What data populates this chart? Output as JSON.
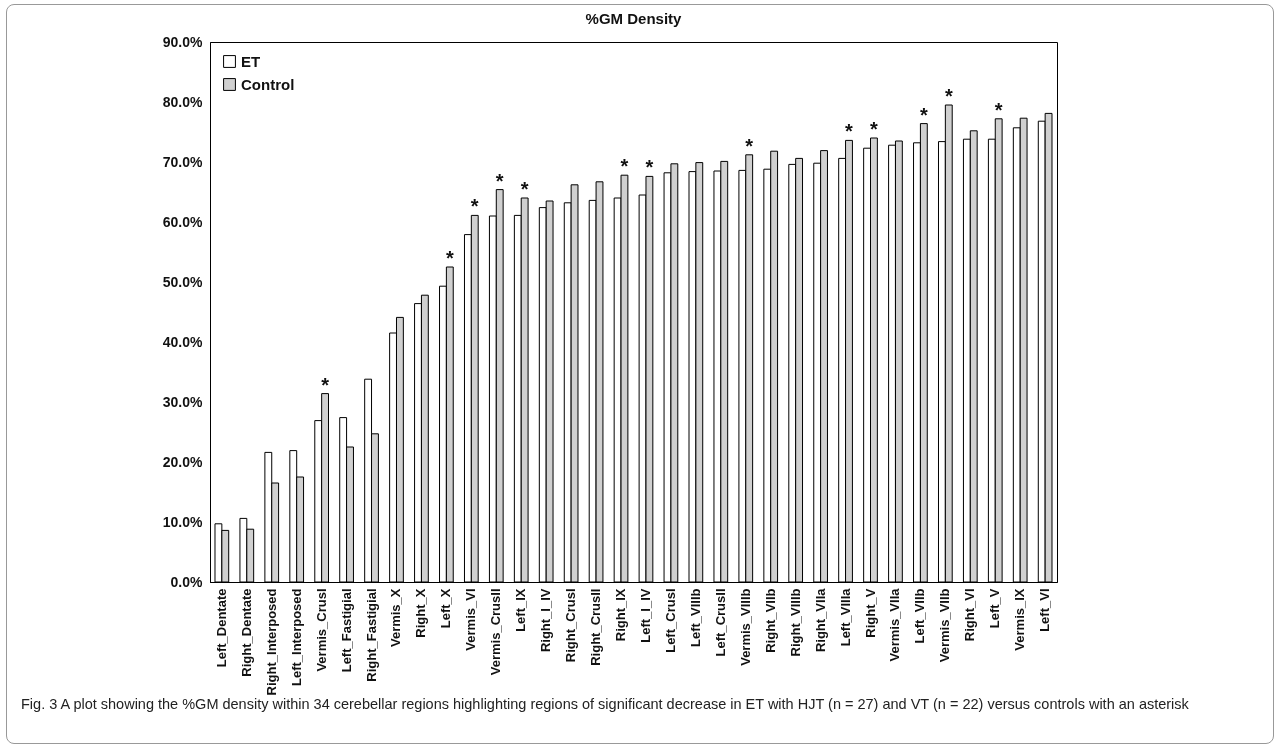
{
  "chart_data": {
    "type": "bar",
    "title": "%GM Density",
    "categories": [
      "Left_Dentate",
      "Right_Dentate",
      "Right_Interposed",
      "Left_Interposed",
      "Vermis_CrusI",
      "Left_Fastigial",
      "Right_Fastigial",
      "Vermis_X",
      "Right_X",
      "Left_X",
      "Vermis_VI",
      "Vermis_CrusII",
      "Left_IX",
      "Right_I_IV",
      "Right_CrusI",
      "Right_CrusII",
      "Right_IX",
      "Left_I_IV",
      "Left_CrusI",
      "Left_VIIIb",
      "Left_CrusII",
      "Vermis_VIIIb",
      "Right_VIIb",
      "Right_VIIIb",
      "Right_VIIa",
      "Left_VIIIa",
      "Right_V",
      "Vermis_VIIa",
      "Left_VIIb",
      "Vermis_VIIb",
      "Right_VI",
      "Left_V",
      "Vermis_IX",
      "Left_VI"
    ],
    "series": [
      {
        "name": "ET",
        "color": "#ffffff",
        "values": [
          9.7,
          10.6,
          21.6,
          21.9,
          26.9,
          27.4,
          33.8,
          41.5,
          46.4,
          49.3,
          57.9,
          61.0,
          61.1,
          62.4,
          63.2,
          63.6,
          64.0,
          64.5,
          68.2,
          68.4,
          68.5,
          68.6,
          68.8,
          69.6,
          69.8,
          70.6,
          72.3,
          72.8,
          73.2,
          73.4,
          73.8,
          73.8,
          75.7,
          76.8
        ]
      },
      {
        "name": "Control",
        "color": "#d0d0d0",
        "values": [
          8.6,
          8.8,
          16.5,
          17.5,
          31.4,
          22.5,
          24.7,
          44.1,
          47.8,
          52.5,
          61.1,
          65.4,
          64.0,
          63.5,
          66.2,
          66.7,
          67.8,
          67.6,
          69.7,
          69.9,
          70.1,
          71.2,
          71.8,
          70.6,
          71.9,
          73.6,
          74.0,
          73.5,
          76.4,
          79.5,
          75.2,
          77.2,
          77.3,
          78.1
        ]
      }
    ],
    "ylim": [
      0,
      90
    ],
    "yticks": [
      {
        "value": 0,
        "label": "0.0%"
      },
      {
        "value": 10,
        "label": "10.0%"
      },
      {
        "value": 20,
        "label": "20.0%"
      },
      {
        "value": 30,
        "label": "30.0%"
      },
      {
        "value": 40,
        "label": "40.0%"
      },
      {
        "value": 50,
        "label": "50.0%"
      },
      {
        "value": 60,
        "label": "60.0%"
      },
      {
        "value": 70,
        "label": "70.0%"
      },
      {
        "value": 80,
        "label": "80.0%"
      },
      {
        "value": 90,
        "label": "90.0%"
      }
    ],
    "grid": false,
    "legend": "top left",
    "annotations": [
      {
        "text": "*",
        "x": "Vermis_CrusI",
        "y": 31.4
      },
      {
        "text": "*",
        "x": "Left_X",
        "y": 52.5
      },
      {
        "text": "*",
        "x": "Vermis_VI",
        "y": 61.1
      },
      {
        "text": "*",
        "x": "Vermis_CrusII",
        "y": 65.4
      },
      {
        "text": "*",
        "x": "Left_IX",
        "y": 64.0
      },
      {
        "text": "*",
        "x": "Right_IX",
        "y": 67.8
      },
      {
        "text": "*",
        "x": "Left_I_IV",
        "y": 67.6
      },
      {
        "text": "*",
        "x": "Vermis_VIIIb",
        "y": 71.2
      },
      {
        "text": "*",
        "x": "Left_VIIIa",
        "y": 73.6
      },
      {
        "text": "*",
        "x": "Right_V",
        "y": 74.0
      },
      {
        "text": "*",
        "x": "Left_VIIb",
        "y": 76.4
      },
      {
        "text": "*",
        "x": "Vermis_VIIb",
        "y": 79.5
      },
      {
        "text": "*",
        "x": "Left_V",
        "y": 77.2
      },
      "Fig. 3 A plot showing the %GM density within 34 cerebellar regions highlighting regions of significant decrease in ET with HJT (n = 27) and VT (n = 22) versus controls with an asterisk"
    ]
  }
}
